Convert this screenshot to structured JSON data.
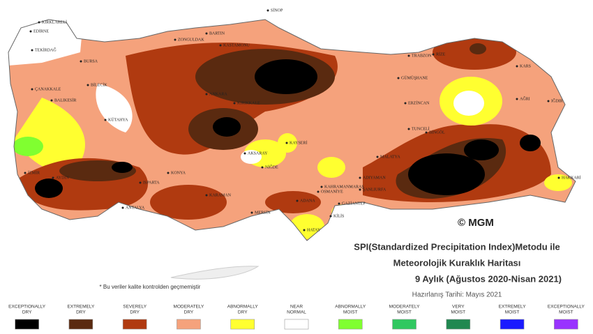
{
  "title_lines": [
    "SPI(Standardized Precipitation Index)Metodu ile",
    "Meteorolojik Kuraklık Haritası",
    "9 Aylık (Ağustos 2020-Nisan 2021)"
  ],
  "prepared": "Hazırlanış Tarihi: Mayıs 2021",
  "copyright": "© MGM",
  "note": "* Bu veriler kalite kontrolden geçmemiştir",
  "legend": [
    {
      "label": [
        "EXCEPTIONALLY",
        "DRY"
      ],
      "color": "#000000"
    },
    {
      "label": [
        "EXTREMELY",
        "DRY"
      ],
      "color": "#5a2a10"
    },
    {
      "label": [
        "SEVERELY",
        "DRY"
      ],
      "color": "#b03a10"
    },
    {
      "label": [
        "MODERATELY",
        "DRY"
      ],
      "color": "#f5a27c"
    },
    {
      "label": [
        "ABNORMALLY",
        "DRY"
      ],
      "color": "#ffff30"
    },
    {
      "label": [
        "NEAR",
        "NORMAL"
      ],
      "color": "#ffffff"
    },
    {
      "label": [
        "ABNORMALLY",
        "MOIST"
      ],
      "color": "#80ff30"
    },
    {
      "label": [
        "MODERATELY",
        "MOIST"
      ],
      "color": "#30c860"
    },
    {
      "label": [
        "VERY",
        "MOIST"
      ],
      "color": "#208850"
    },
    {
      "label": [
        "EXTREMELY",
        "MOIST"
      ],
      "color": "#1a1aff"
    },
    {
      "label": [
        "EXCEPTIONALLY",
        "MOIST"
      ],
      "color": "#9933ff"
    }
  ],
  "cities": [
    "KIRKLARELİ",
    "EDİRNE",
    "TEKİRDAĞ",
    "ÇANAKKALE",
    "BALIKESİR",
    "BURSA",
    "BİLECİK",
    "KÜTAHYA",
    "İZMİR",
    "AYDIN",
    "ISPARTA",
    "ANTALYA",
    "KONYA",
    "KARAMAN",
    "MERSİN",
    "ADANA",
    "OSMANİYE",
    "KİLİS",
    "GAZİANTEP",
    "ŞANLIURFA",
    "KAHRAMANMARAŞ",
    "ADIYAMAN",
    "MALATYA",
    "TUNCELİ",
    "BİNGÖL",
    "ERZİNCAN",
    "GÜMÜŞHANE",
    "TRABZON",
    "RİZE",
    "KARS",
    "AĞRI",
    "IĞDIR",
    "HAKKARİ",
    "SİNOP",
    "BARTIN",
    "ZONGULDAK",
    "KASTAMONU",
    "ANKARA",
    "KIRIKKALE",
    "AKSARAY",
    "NİĞDE",
    "KAYSERİ",
    "HATAY"
  ]
}
